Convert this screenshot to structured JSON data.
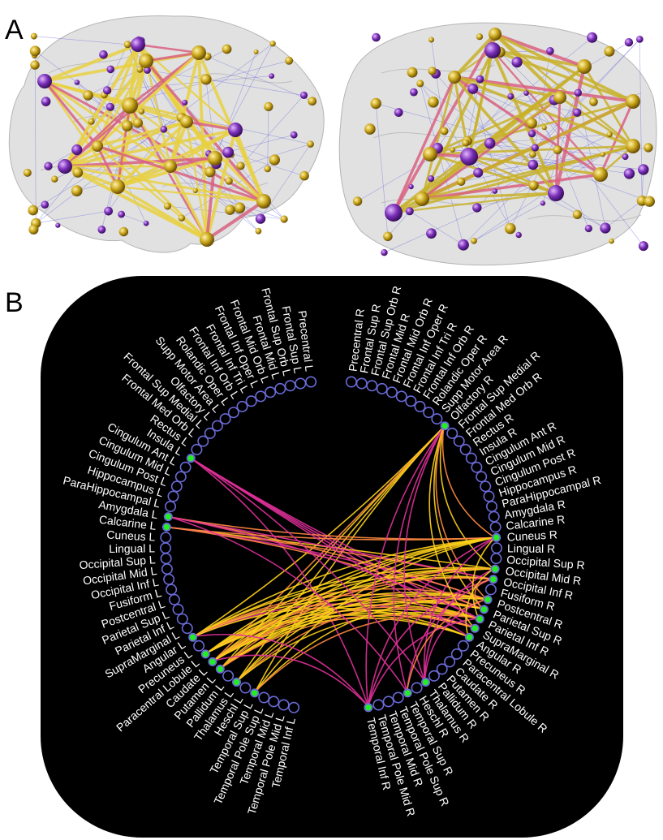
{
  "panels": {
    "a": "A",
    "b": "B"
  },
  "colors": {
    "background": "#000000",
    "node_ring": "#6a6ad8",
    "node_active": "#22ee22",
    "edge_yellow": "#ffd21a",
    "edge_magenta": "#e0309a",
    "edge_orange": "#ff8a40",
    "label": "#ffffff",
    "brain_node_gold": "#c8a418",
    "brain_node_purple": "#7a2fb8"
  },
  "left_regions": [
    "Precentral L",
    "Frontal Sup L",
    "Frontal Sup Orb L",
    "Frontal Mid L",
    "Frontal Mid Orb L",
    "Frontal Inf Oper L",
    "Frontal Inf Tri L",
    "Frontal Inf Orb L",
    "Rolandic Oper L",
    "Supp Motor Area L",
    "Olfactory L",
    "Frontal Sup Medial L",
    "Frontal Med Orb L",
    "Rectus L",
    "Insula L",
    "Cingulum Ant L",
    "Cingulum Mid L",
    "Cingulum Post L",
    "Hippocampus L",
    "ParaHippocampal L",
    "Amygdala L",
    "Calcarine L",
    "Cuneus L",
    "Lingual L",
    "Occipital Sup L",
    "Occipital Mid L",
    "Occipital Inf L",
    "Fusiform L",
    "Postcentral L",
    "Parietal Sup L",
    "Parietal Inf L",
    "SupraMarginal L",
    "Angular L",
    "Precuneus L",
    "Paracentral Lobule L",
    "Caudate L",
    "Putamen L",
    "Pallidum L",
    "Thalamus L",
    "Heschl L",
    "Temporal Sup L",
    "Temporal Pole Sup L",
    "Temporal Mid L",
    "Temporal Pole Mid L",
    "Temporal Inf L"
  ],
  "right_regions": [
    "Precentral R",
    "Frontal Sup R",
    "Frontal Sup Orb R",
    "Frontal Mid R",
    "Frontal Mid Orb R",
    "Frontal Inf Oper R",
    "Frontal Inf Tri R",
    "Frontal Inf Orb R",
    "Rolandic Oper R",
    "Supp Motor Area R",
    "Olfactory R",
    "Frontal Sup Medial R",
    "Frontal Med Orb R",
    "Rectus R",
    "Insula R",
    "Cingulum Ant R",
    "Cingulum Mid R",
    "Cingulum Post R",
    "Hippocampus R",
    "ParaHippocampal R",
    "Amygdala R",
    "Calcarine R",
    "Cuneus R",
    "Lingual R",
    "Occipital Sup R",
    "Occipital Mid R",
    "Occipital Inf R",
    "Fusiform R",
    "Postcentral R",
    "Parietal Sup R",
    "Parietal Inf R",
    "SupraMarginal R",
    "Angular R",
    "Precuneus R",
    "Paracentral Lobule R",
    "Caudate R",
    "Putamen R",
    "Pallidum R",
    "Thalamus R",
    "Heschl R",
    "Temporal Sup R",
    "Temporal Pole Sup R",
    "Temporal Mid R",
    "Temporal Pole Mid R",
    "Temporal Inf R"
  ],
  "active_nodes": [
    "Insula L",
    "Calcarine L",
    "Amygdala L",
    "Angular L",
    "Paracentral Lobule L",
    "Caudate L",
    "Putamen L",
    "Thalamus L",
    "Temporal Sup L",
    "Olfactory R",
    "Cuneus R",
    "Occipital Mid R",
    "Occipital Inf R",
    "Postcentral R",
    "Parietal Sup R",
    "Parietal Inf R",
    "SupraMarginal R",
    "Angular R",
    "Thalamus R",
    "Temporal Sup R",
    "Temporal Inf R"
  ],
  "connections": [
    [
      "Olfactory R",
      "Temporal Sup L",
      "yellow"
    ],
    [
      "Olfactory R",
      "Thalamus L",
      "yellow"
    ],
    [
      "Olfactory R",
      "Putamen L",
      "yellow"
    ],
    [
      "Olfactory R",
      "Caudate L",
      "orange"
    ],
    [
      "Olfactory R",
      "Parietal Sup R",
      "yellow"
    ],
    [
      "Olfactory R",
      "Occipital Mid R",
      "yellow"
    ],
    [
      "Olfactory R",
      "Postcentral R",
      "orange"
    ],
    [
      "Olfactory R",
      "Angular L",
      "yellow"
    ],
    [
      "Insula L",
      "Parietal Inf R",
      "magenta"
    ],
    [
      "Insula L",
      "SupraMarginal R",
      "magenta"
    ],
    [
      "Insula L",
      "Temporal Inf R",
      "magenta"
    ],
    [
      "Insula L",
      "Parietal Sup R",
      "magenta"
    ],
    [
      "Calcarine L",
      "Cuneus R",
      "orange"
    ],
    [
      "Calcarine L",
      "Occipital Mid R",
      "yellow"
    ],
    [
      "Calcarine L",
      "Occipital Inf R",
      "orange"
    ],
    [
      "Calcarine L",
      "Postcentral R",
      "magenta"
    ],
    [
      "Calcarine L",
      "Parietal Sup R",
      "orange"
    ],
    [
      "Amygdala L",
      "Cuneus R",
      "orange"
    ],
    [
      "Amygdala L",
      "Occipital Inf R",
      "magenta"
    ],
    [
      "Amygdala L",
      "Postcentral R",
      "orange"
    ],
    [
      "Angular L",
      "Cuneus R",
      "yellow"
    ],
    [
      "Angular L",
      "Occipital Mid R",
      "yellow"
    ],
    [
      "Angular L",
      "Occipital Inf R",
      "yellow"
    ],
    [
      "Angular L",
      "Postcentral R",
      "orange"
    ],
    [
      "Angular L",
      "Parietal Sup R",
      "orange"
    ],
    [
      "Angular L",
      "Parietal Inf R",
      "yellow"
    ],
    [
      "Angular L",
      "SupraMarginal R",
      "magenta"
    ],
    [
      "Angular L",
      "Angular R",
      "yellow"
    ],
    [
      "Paracentral Lobule L",
      "Cuneus R",
      "yellow"
    ],
    [
      "Paracentral Lobule L",
      "Occipital Mid R",
      "yellow"
    ],
    [
      "Paracentral Lobule L",
      "Occipital Inf R",
      "yellow"
    ],
    [
      "Paracentral Lobule L",
      "Postcentral R",
      "yellow"
    ],
    [
      "Paracentral Lobule L",
      "Parietal Sup R",
      "orange"
    ],
    [
      "Paracentral Lobule L",
      "Parietal Inf R",
      "yellow"
    ],
    [
      "Paracentral Lobule L",
      "SupraMarginal R",
      "yellow"
    ],
    [
      "Paracentral Lobule L",
      "Angular R",
      "yellow"
    ],
    [
      "Caudate L",
      "Cuneus R",
      "yellow"
    ],
    [
      "Caudate L",
      "Occipital Mid R",
      "yellow"
    ],
    [
      "Caudate L",
      "Occipital Inf R",
      "orange"
    ],
    [
      "Caudate L",
      "Postcentral R",
      "yellow"
    ],
    [
      "Caudate L",
      "Parietal Sup R",
      "yellow"
    ],
    [
      "Caudate L",
      "Parietal Inf R",
      "orange"
    ],
    [
      "Caudate L",
      "SupraMarginal R",
      "yellow"
    ],
    [
      "Caudate L",
      "Angular R",
      "yellow"
    ],
    [
      "Putamen L",
      "Cuneus R",
      "yellow"
    ],
    [
      "Putamen L",
      "Occipital Mid R",
      "orange"
    ],
    [
      "Putamen L",
      "Postcentral R",
      "yellow"
    ],
    [
      "Putamen L",
      "Parietal Sup R",
      "yellow"
    ],
    [
      "Putamen L",
      "Parietal Inf R",
      "yellow"
    ],
    [
      "Putamen L",
      "SupraMarginal R",
      "orange"
    ],
    [
      "Thalamus L",
      "Cuneus R",
      "yellow"
    ],
    [
      "Thalamus L",
      "Occipital Mid R",
      "yellow"
    ],
    [
      "Thalamus L",
      "Postcentral R",
      "orange"
    ],
    [
      "Thalamus L",
      "Parietal Inf R",
      "yellow"
    ],
    [
      "Temporal Sup L",
      "Cuneus R",
      "yellow"
    ],
    [
      "Temporal Sup L",
      "Postcentral R",
      "yellow"
    ],
    [
      "Temporal Sup L",
      "Parietal Inf R",
      "orange"
    ],
    [
      "Temporal Inf R",
      "Cuneus R",
      "magenta"
    ],
    [
      "Temporal Inf R",
      "Occipital Inf R",
      "magenta"
    ],
    [
      "Temporal Inf R",
      "Parietal Inf R",
      "magenta"
    ],
    [
      "Temporal Inf R",
      "Olfactory R",
      "magenta"
    ],
    [
      "Temporal Inf R",
      "Angular L",
      "magenta"
    ],
    [
      "Temporal Inf R",
      "Caudate L",
      "magenta"
    ],
    [
      "Thalamus R",
      "Cuneus R",
      "magenta"
    ],
    [
      "Thalamus R",
      "Occipital Mid R",
      "magenta"
    ],
    [
      "Thalamus R",
      "Postcentral R",
      "magenta"
    ],
    [
      "Thalamus R",
      "Insula L",
      "magenta"
    ],
    [
      "Thalamus R",
      "Olfactory R",
      "magenta"
    ],
    [
      "Temporal Sup R",
      "Occipital Inf R",
      "magenta"
    ],
    [
      "Temporal Sup R",
      "Postcentral R",
      "orange"
    ],
    [
      "Temporal Sup R",
      "Amygdala L",
      "magenta"
    ],
    [
      "Temporal Sup R",
      "Olfactory R",
      "magenta"
    ],
    [
      "Cuneus R",
      "Parietal Inf R",
      "yellow"
    ],
    [
      "Occipital Mid R",
      "Angular R",
      "yellow"
    ],
    [
      "Occipital Inf R",
      "Parietal Sup R",
      "orange"
    ],
    [
      "Olfactory R",
      "Cuneus R",
      "orange"
    ],
    [
      "Olfactory R",
      "SupraMarginal R",
      "yellow"
    ],
    [
      "Amygdala L",
      "Parietal Inf R",
      "magenta"
    ],
    [
      "Insula L",
      "Angular R",
      "magenta"
    ]
  ]
}
